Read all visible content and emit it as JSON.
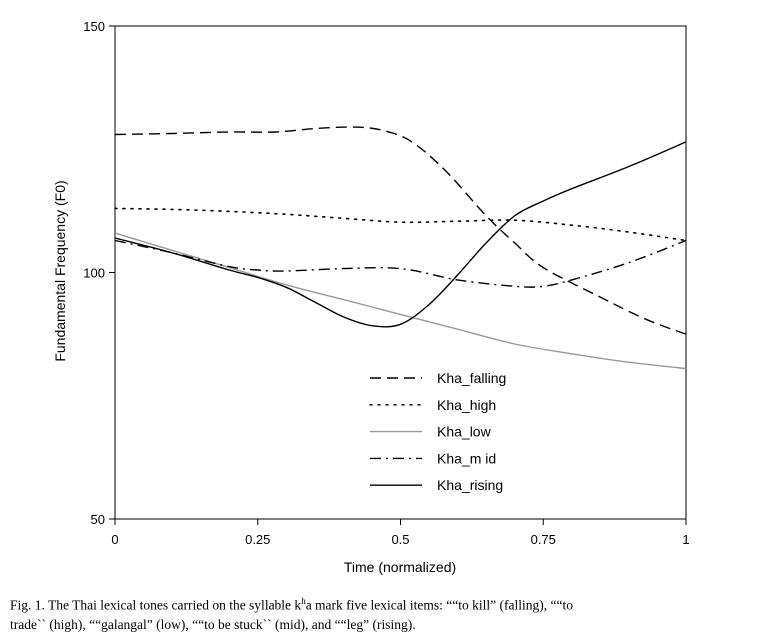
{
  "chart_data": {
    "type": "line",
    "xlabel": "Time (normalized)",
    "ylabel": "Fundamental Frequency (F0)",
    "xlim": [
      0,
      1
    ],
    "ylim": [
      50,
      150
    ],
    "xticks": [
      "0",
      "0.25",
      "0.5",
      "0.75",
      "1"
    ],
    "yticks": [
      "50",
      "100",
      "150"
    ],
    "grid": false,
    "legend_position": "bottom-center",
    "series": [
      {
        "name": "Kha_falling",
        "style": "dashed",
        "color": "#000000",
        "x": [
          0,
          0.1,
          0.2,
          0.28,
          0.35,
          0.42,
          0.47,
          0.52,
          0.58,
          0.65,
          0.7,
          0.75,
          0.85,
          0.93,
          1
        ],
        "y": [
          128,
          128.2,
          128.5,
          128.5,
          129.2,
          129.5,
          128.8,
          126.5,
          120.5,
          111.5,
          106,
          101,
          95,
          90.5,
          87.5
        ]
      },
      {
        "name": "Kha_high",
        "style": "dotted",
        "color": "#000000",
        "x": [
          0,
          0.1,
          0.2,
          0.3,
          0.4,
          0.5,
          0.6,
          0.7,
          0.8,
          0.9,
          1
        ],
        "y": [
          113,
          112.8,
          112.4,
          111.8,
          111,
          110.2,
          110.4,
          110.6,
          109.6,
          108.2,
          106.5
        ]
      },
      {
        "name": "Kha_low",
        "style": "solid",
        "color": "#999999",
        "x": [
          0,
          0.1,
          0.2,
          0.3,
          0.4,
          0.5,
          0.6,
          0.7,
          0.8,
          0.9,
          1
        ],
        "y": [
          108,
          104.5,
          101,
          97.5,
          94.5,
          91.5,
          88.5,
          85.5,
          83.5,
          81.8,
          80.5
        ]
      },
      {
        "name": "Kha_mid",
        "style": "dashdot",
        "color": "#000000",
        "x": [
          0,
          0.1,
          0.2,
          0.25,
          0.3,
          0.4,
          0.5,
          0.6,
          0.7,
          0.75,
          0.8,
          0.9,
          1
        ],
        "y": [
          106.5,
          104,
          101.2,
          100.5,
          100.3,
          100.8,
          100.8,
          98.5,
          97.2,
          97.2,
          98.5,
          102,
          106.5
        ]
      },
      {
        "name": "Kha_rising",
        "style": "solid",
        "color": "#000000",
        "x": [
          0,
          0.1,
          0.2,
          0.25,
          0.3,
          0.35,
          0.4,
          0.45,
          0.5,
          0.55,
          0.6,
          0.65,
          0.7,
          0.75,
          0.8,
          0.9,
          1
        ],
        "y": [
          107,
          104,
          100.5,
          99,
          97,
          94,
          91,
          89.2,
          89.5,
          93.5,
          99.5,
          106,
          111.5,
          114.5,
          117,
          121.5,
          126.5
        ]
      }
    ]
  },
  "caption": {
    "line1_pre": "Fig. 1. The Thai lexical tones carried on the syllable k",
    "line1_sup": "h",
    "line1_post": "a mark five lexical items: ““to kill” (falling), ““to",
    "line2": "trade`` (high), ““galangal” (low), ““to be stuck`` (mid), and ““leg” (rising)."
  }
}
